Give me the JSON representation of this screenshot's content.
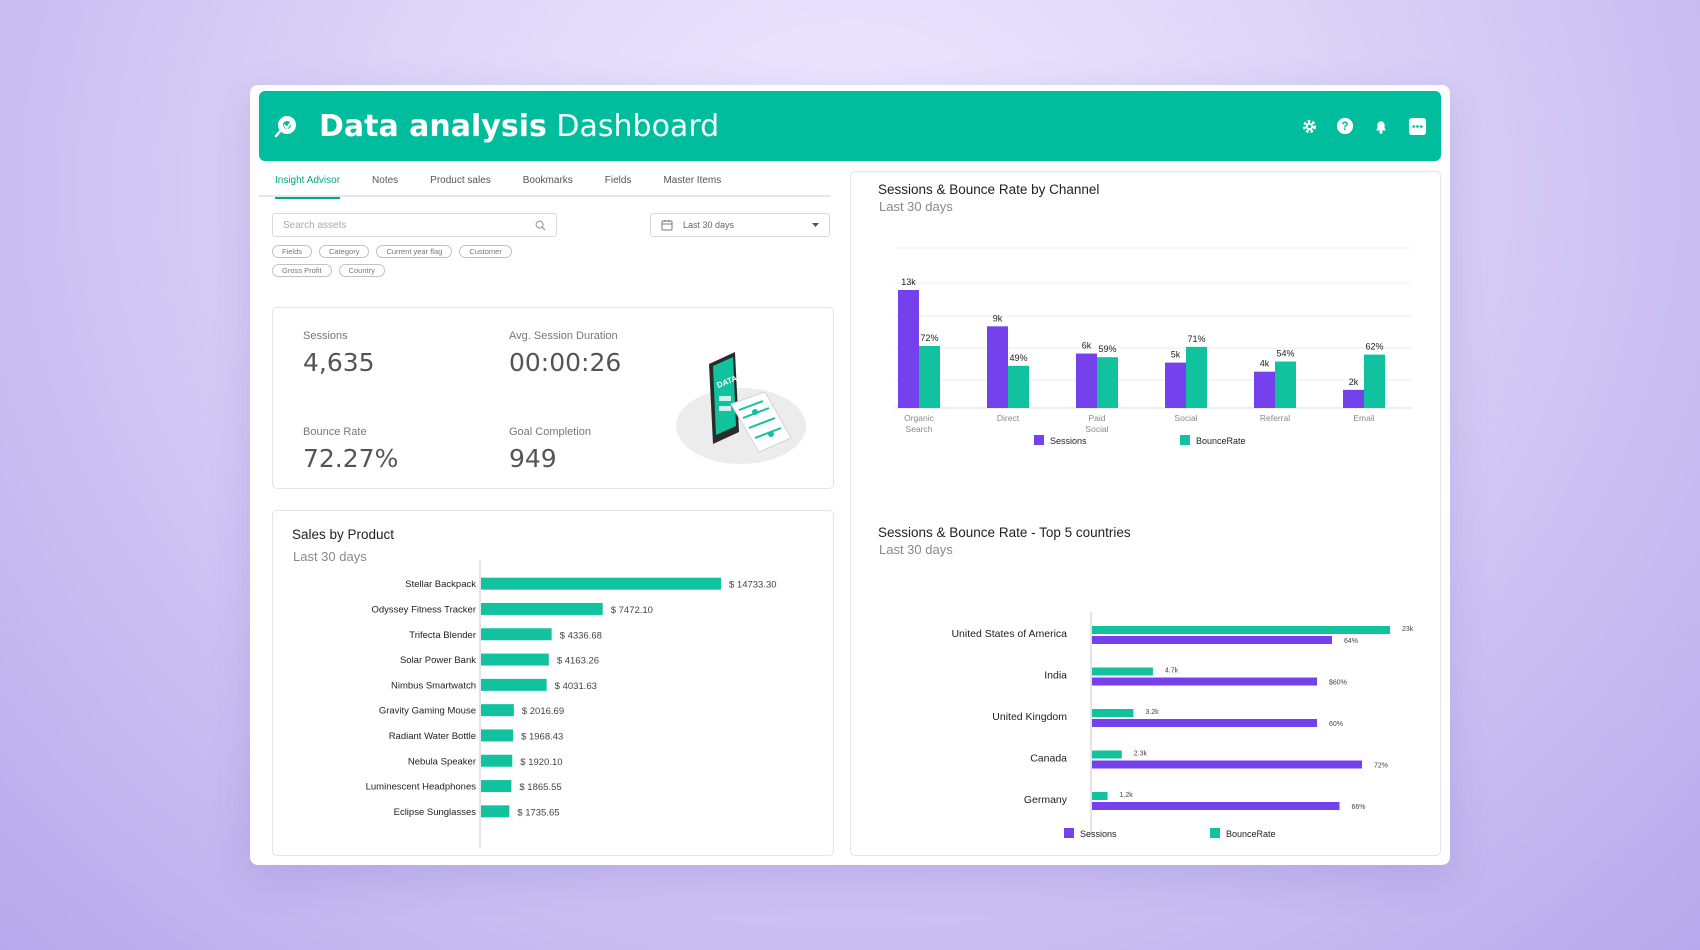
{
  "header": {
    "title_bold": "Data analysis",
    "title_light": "Dashboard",
    "icons": [
      "gear-icon",
      "help-icon",
      "bell-icon",
      "chat-icon"
    ]
  },
  "tabs": [
    {
      "label": "Insight Advisor",
      "active": true
    },
    {
      "label": "Notes",
      "active": false
    },
    {
      "label": "Product sales",
      "active": false
    },
    {
      "label": "Bookmarks",
      "active": false
    },
    {
      "label": "Fields",
      "active": false
    },
    {
      "label": "Master Items",
      "active": false
    }
  ],
  "search": {
    "placeholder": "Search assets"
  },
  "date_filter": {
    "value": "Last 30 days"
  },
  "chips": [
    "Fields",
    "Category",
    "Current year flag",
    "Customer",
    "Gross Profit",
    "Country"
  ],
  "kpis": {
    "sessions": {
      "label": "Sessions",
      "value": "4,635"
    },
    "avg_duration": {
      "label": "Avg. Session Duration",
      "value": "00:00:26"
    },
    "bounce_rate": {
      "label": "Bounce Rate",
      "value": "72.27%"
    },
    "goal_completion": {
      "label": "Goal Completion",
      "value": "949"
    },
    "illustration_text": "DATA"
  },
  "colors": {
    "brand": "#00bd9d",
    "sessions": "#7441ec",
    "bounce": "#12c29f"
  },
  "chart_data": [
    {
      "type": "bar",
      "orientation": "horizontal",
      "title": "Sales by Product",
      "subtitle": "Last 30 days",
      "categories": [
        "Stellar Backpack",
        "Odyssey Fitness Tracker",
        "Trifecta Blender",
        "Solar Power Bank",
        "Nimbus Smartwatch",
        "Gravity Gaming Mouse",
        "Radiant Water Bottle",
        "Nebula Speaker",
        "Luminescent Headphones",
        "Eclipse Sunglasses"
      ],
      "values": [
        14733.3,
        7472.1,
        4336.68,
        4163.26,
        4031.63,
        2016.69,
        1968.43,
        1920.1,
        1865.55,
        1735.65
      ],
      "labels": [
        "$ 14733.30",
        "$ 7472.10",
        "$ 4336.68",
        "$ 4163.26",
        "$ 4031.63",
        "$ 2016.69",
        "$ 1968.43",
        "$ 1920.10",
        "$ 1865.55",
        "$ 1735.65"
      ]
    },
    {
      "type": "bar",
      "orientation": "vertical",
      "title": "Sessions & Bounce Rate by Channel",
      "subtitle": "Last 30 days",
      "categories": [
        [
          "Organic",
          "Search"
        ],
        [
          "Direct"
        ],
        [
          "Paid",
          "Social"
        ],
        [
          "Social"
        ],
        [
          "Referral"
        ],
        [
          "Email"
        ]
      ],
      "series": [
        {
          "name": "Sessions",
          "values": [
            13,
            9,
            6,
            5,
            4,
            2
          ],
          "labels": [
            "13k",
            "9k",
            "6k",
            "5k",
            "4k",
            "2k"
          ]
        },
        {
          "name": "BounceRate",
          "values": [
            72,
            49,
            59,
            71,
            54,
            62
          ],
          "labels": [
            "72%",
            "49%",
            "59%",
            "71%",
            "54%",
            "62%"
          ]
        }
      ],
      "legend": "bottom"
    },
    {
      "type": "bar",
      "orientation": "horizontal",
      "title": "Sessions & Bounce Rate - Top 5 countries",
      "subtitle": "Last 30 days",
      "categories": [
        "United States of America",
        "India",
        "United Kingdom",
        "Canada",
        "Germany"
      ],
      "series": [
        {
          "name": "BounceRate",
          "values": [
            23,
            4.7,
            3.2,
            2.3,
            1.2
          ],
          "labels": [
            "23k",
            "4.7k",
            "3.2k",
            "2.3k",
            "1.2k"
          ]
        },
        {
          "name": "Sessions",
          "values": [
            64,
            60,
            60,
            72,
            66
          ],
          "labels": [
            "64%",
            "$60%",
            "60%",
            "72%",
            "66%"
          ]
        }
      ],
      "legend_labels": [
        "Sessions",
        "BounceRate"
      ],
      "legend": "bottom"
    }
  ]
}
